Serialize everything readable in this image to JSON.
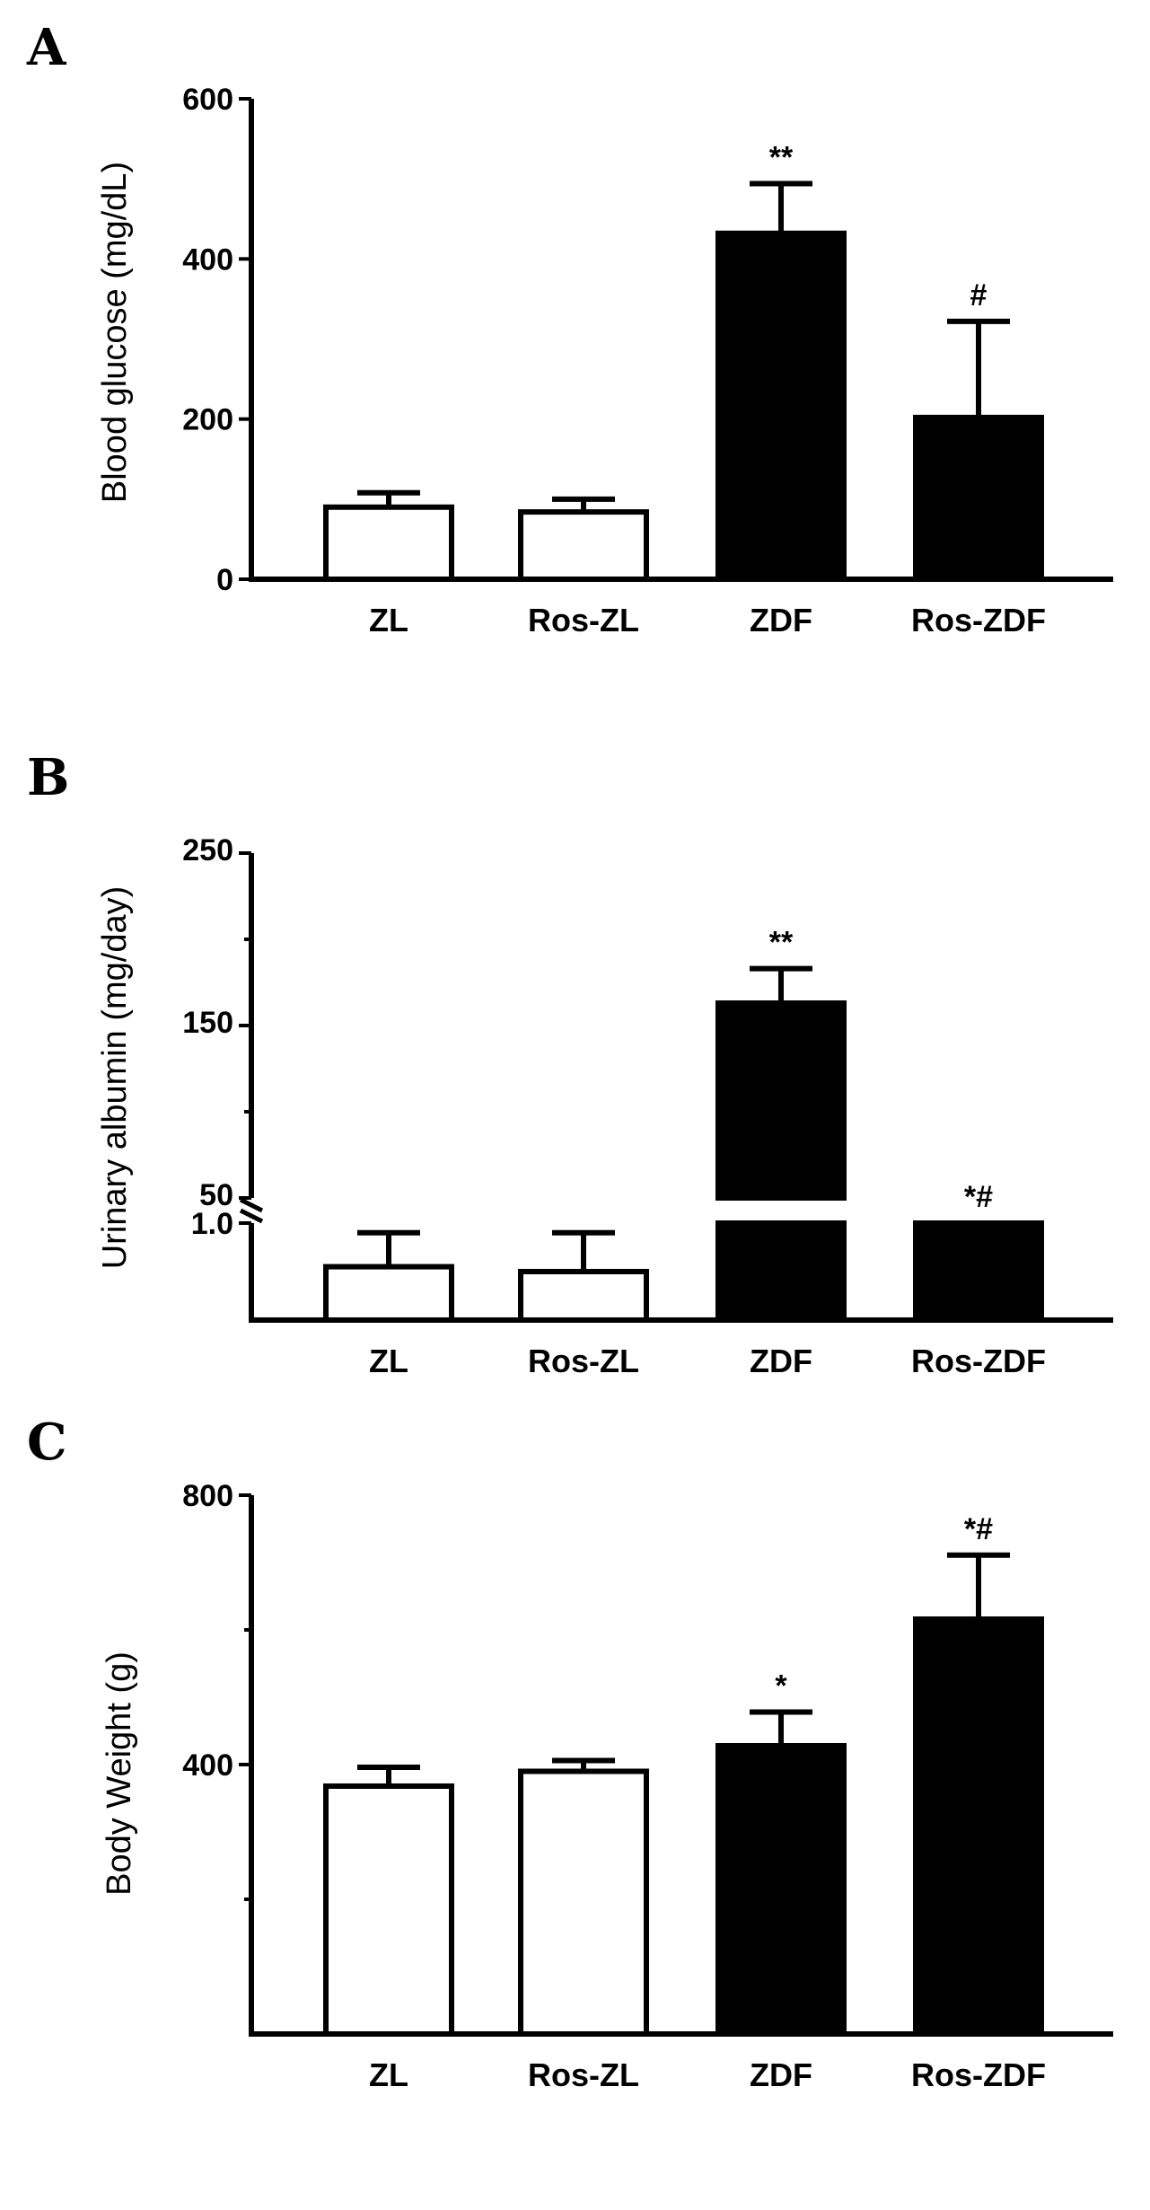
{
  "chart_data": [
    {
      "type": "bar",
      "panel": "A",
      "categories": [
        "ZL",
        "Ros-ZL",
        "ZDF",
        "Ros-ZDF"
      ],
      "values": [
        90,
        84,
        432,
        202
      ],
      "errors": [
        18,
        16,
        62,
        120
      ],
      "bar_colors": [
        "#ffffff",
        "#ffffff",
        "#000000",
        "#000000"
      ],
      "annotations": [
        "",
        "",
        "**",
        "#"
      ],
      "ylabel": "Blood glucose (mg/dL)",
      "ylim": [
        0,
        600
      ],
      "ytick_labels": [
        "0",
        "200",
        "400",
        "600"
      ],
      "ytick_values": [
        0,
        200,
        400,
        600
      ]
    },
    {
      "type": "bar",
      "panel": "B",
      "broken_axis": true,
      "categories": [
        "ZL",
        "Ros-ZL",
        "ZDF",
        "Ros-ZDF"
      ],
      "values": [
        0.55,
        0.5,
        163,
        1.0
      ],
      "errors": [
        0.35,
        0.4,
        20,
        16
      ],
      "bar_colors": [
        "#ffffff",
        "#ffffff",
        "#000000",
        "#000000"
      ],
      "annotations": [
        "",
        "",
        "**",
        "*#"
      ],
      "ylabel": "Urinary albumin (mg/day)",
      "lower_segment": {
        "ylim": [
          0,
          1.0
        ],
        "ytick_labels": [
          "1.0"
        ],
        "ytick_values": [
          1.0
        ]
      },
      "upper_segment": {
        "ylim": [
          50,
          250
        ],
        "ytick_labels": [
          "50",
          "150",
          "250"
        ],
        "ytick_values": [
          50,
          150,
          250
        ],
        "minor_ticks": [
          100,
          200
        ]
      }
    },
    {
      "type": "bar",
      "panel": "C",
      "categories": [
        "ZL",
        "Ros-ZL",
        "ZDF",
        "Ros-ZDF"
      ],
      "values": [
        368,
        390,
        428,
        616
      ],
      "errors": [
        28,
        16,
        50,
        95
      ],
      "bar_colors": [
        "#ffffff",
        "#ffffff",
        "#000000",
        "#000000"
      ],
      "annotations": [
        "",
        "",
        "*",
        "*#"
      ],
      "ylabel": "Body Weight (g)",
      "ylim": [
        0,
        800
      ],
      "ytick_labels": [
        "400",
        "800"
      ],
      "ytick_values": [
        400,
        800
      ],
      "minor_ticks": [
        200,
        600
      ]
    }
  ]
}
